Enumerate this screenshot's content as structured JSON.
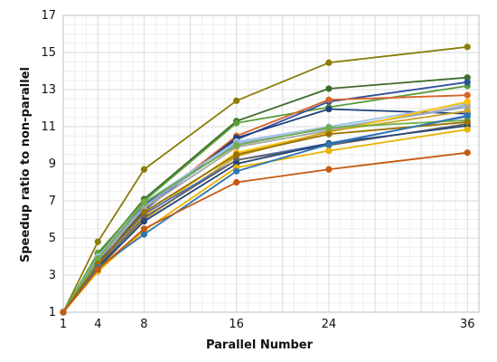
{
  "chart_data": {
    "type": "line",
    "xlabel": "Parallel Number",
    "ylabel": "Speedup ratio to non-parallel",
    "x": [
      1,
      4,
      8,
      16,
      24,
      36
    ],
    "xlim": [
      1,
      37
    ],
    "ylim": [
      1,
      17
    ],
    "x_ticks": [
      1,
      4,
      8,
      16,
      24,
      36
    ],
    "y_ticks": [
      1,
      3,
      5,
      7,
      9,
      11,
      13,
      15,
      17
    ],
    "grid": true,
    "series": [
      {
        "color": "#8b7d0a",
        "values": [
          1,
          4.8,
          8.7,
          12.4,
          14.45,
          15.3
        ]
      },
      {
        "color": "#3f6d2c",
        "values": [
          1,
          4.1,
          7.1,
          11.3,
          13.05,
          13.65
        ]
      },
      {
        "color": "#5a9d3c",
        "values": [
          1,
          4.2,
          7.0,
          11.2,
          12.05,
          13.2
        ]
      },
      {
        "color": "#2f4f9e",
        "values": [
          1,
          3.7,
          6.8,
          10.3,
          12.35,
          13.4
        ]
      },
      {
        "color": "#d6642a",
        "values": [
          1,
          3.5,
          6.6,
          10.5,
          12.45,
          12.7
        ]
      },
      {
        "color": "#1f3f7a",
        "values": [
          1,
          3.6,
          6.5,
          10.4,
          11.95,
          11.7
        ]
      },
      {
        "color": "#9dc3e6",
        "values": [
          1,
          4.0,
          6.9,
          10.2,
          11.0,
          12.25
        ]
      },
      {
        "color": "#8faadc",
        "values": [
          1,
          3.9,
          6.7,
          10.1,
          10.9,
          12.05
        ]
      },
      {
        "color": "#a5a5a5",
        "values": [
          1,
          3.8,
          6.6,
          9.9,
          10.8,
          12.15
        ]
      },
      {
        "color": "#ffc000",
        "values": [
          1,
          3.4,
          6.2,
          9.6,
          10.7,
          12.35
        ]
      },
      {
        "color": "#c9a227",
        "values": [
          1,
          3.3,
          6.0,
          9.4,
          10.75,
          11.85
        ]
      },
      {
        "color": "#4472c4",
        "values": [
          1,
          3.6,
          6.3,
          9.2,
          10.1,
          11.55
        ]
      },
      {
        "color": "#70ad47",
        "values": [
          1,
          3.9,
          6.9,
          10.0,
          10.95,
          11.35
        ]
      },
      {
        "color": "#636363",
        "values": [
          1,
          3.5,
          6.1,
          9.2,
          10.0,
          11.15
        ]
      },
      {
        "color": "#264478",
        "values": [
          1,
          3.4,
          5.9,
          9.0,
          10.1,
          11.05
        ]
      },
      {
        "color": "#997300",
        "values": [
          1,
          3.6,
          6.4,
          9.5,
          10.6,
          11.25
        ]
      },
      {
        "color": "#e8b400",
        "values": [
          1,
          3.2,
          5.4,
          8.8,
          9.7,
          10.85
        ]
      },
      {
        "color": "#2e75b6",
        "values": [
          1,
          3.4,
          5.2,
          8.6,
          10.05,
          11.6
        ]
      },
      {
        "color": "#c55a11",
        "values": [
          1,
          3.3,
          5.5,
          8.0,
          8.7,
          9.6
        ]
      }
    ]
  }
}
